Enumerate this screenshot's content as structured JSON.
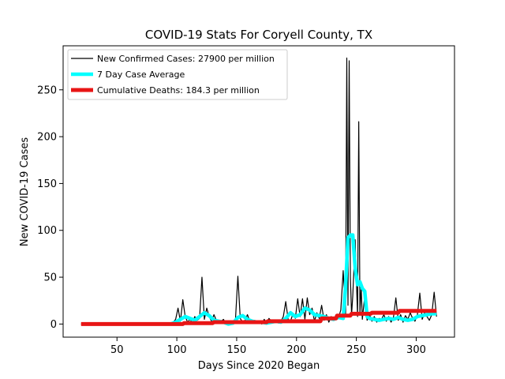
{
  "chart_data": {
    "type": "line",
    "title": "COVID-19 Stats For Coryell County, TX",
    "xlabel": "Days Since 2020 Began",
    "ylabel": "New COVID-19 Cases",
    "xlim": [
      5,
      332
    ],
    "ylim": [
      -14,
      297
    ],
    "xticks": [
      50,
      100,
      150,
      200,
      250,
      300
    ],
    "yticks": [
      0,
      50,
      100,
      150,
      200,
      250
    ],
    "grid": false,
    "legend_position": "upper-left",
    "series": [
      {
        "name": "New Confirmed Cases: 27900 per million",
        "color": "#000000",
        "x": [
          20,
          95,
          97,
          99,
          101,
          103,
          105,
          107,
          109,
          111,
          113,
          115,
          117,
          119,
          121,
          123,
          125,
          127,
          129,
          131,
          133,
          135,
          137,
          139,
          141,
          143,
          145,
          147,
          149,
          151,
          153,
          155,
          157,
          159,
          161,
          163,
          165,
          167,
          169,
          171,
          173,
          175,
          177,
          179,
          181,
          183,
          185,
          187,
          189,
          191,
          193,
          195,
          197,
          199,
          201,
          203,
          205,
          207,
          209,
          211,
          213,
          215,
          217,
          219,
          221,
          223,
          225,
          227,
          229,
          231,
          233,
          235,
          237,
          239,
          241,
          242,
          243,
          244,
          245,
          246,
          247,
          249,
          251,
          252,
          253,
          254,
          255,
          257,
          259,
          261,
          263,
          265,
          267,
          269,
          271,
          273,
          275,
          277,
          279,
          281,
          283,
          285,
          287,
          289,
          291,
          293,
          295,
          297,
          299,
          301,
          303,
          305,
          307,
          309,
          311,
          313,
          315,
          317
        ],
        "values": [
          0,
          0,
          2,
          5,
          17,
          3,
          26,
          8,
          2,
          5,
          1,
          8,
          4,
          6,
          50,
          5,
          17,
          8,
          3,
          10,
          4,
          1,
          3,
          5,
          0,
          2,
          1,
          3,
          5,
          51,
          6,
          2,
          4,
          10,
          3,
          1,
          4,
          2,
          3,
          0,
          5,
          2,
          6,
          3,
          2,
          4,
          1,
          3,
          8,
          24,
          5,
          3,
          11,
          6,
          27,
          8,
          27,
          5,
          28,
          10,
          17,
          3,
          12,
          6,
          20,
          4,
          10,
          2,
          8,
          4,
          10,
          6,
          15,
          57,
          10,
          284,
          20,
          281,
          50,
          10,
          30,
          90,
          8,
          216,
          12,
          40,
          5,
          30,
          4,
          10,
          3,
          8,
          2,
          6,
          5,
          10,
          3,
          8,
          2,
          7,
          28,
          4,
          10,
          2,
          9,
          5,
          12,
          6,
          3,
          10,
          33,
          5,
          12,
          8,
          4,
          10,
          34,
          8
        ]
      },
      {
        "name": "7 Day Case Average",
        "color": "#00ffff",
        "x": [
          95,
          99,
          103,
          107,
          111,
          115,
          119,
          123,
          127,
          131,
          135,
          139,
          143,
          147,
          151,
          155,
          159,
          163,
          167,
          171,
          175,
          179,
          183,
          187,
          191,
          195,
          199,
          203,
          207,
          211,
          215,
          219,
          223,
          227,
          231,
          235,
          239,
          241,
          243,
          245,
          247,
          249,
          251,
          253,
          255,
          257,
          259,
          261,
          265,
          269,
          273,
          277,
          281,
          285,
          289,
          293,
          297,
          301,
          305,
          309,
          313,
          317
        ],
        "values": [
          0,
          2,
          5,
          8,
          6,
          4,
          8,
          12,
          9,
          4,
          3,
          2,
          0,
          1,
          7,
          9,
          5,
          3,
          2,
          2,
          1,
          2,
          3,
          2,
          6,
          12,
          8,
          10,
          17,
          15,
          10,
          9,
          8,
          6,
          5,
          7,
          6,
          40,
          92,
          95,
          95,
          60,
          42,
          45,
          38,
          35,
          8,
          6,
          5,
          4,
          5,
          6,
          5,
          7,
          5,
          4,
          5,
          8,
          9,
          10,
          11,
          11
        ]
      },
      {
        "name": "Cumulative Deaths: 184.3 per million",
        "color": "#e81515",
        "x": [
          20,
          105,
          106,
          130,
          131,
          175,
          176,
          220,
          221,
          233,
          234,
          245,
          246,
          262,
          263,
          285,
          286,
          317
        ],
        "values": [
          0,
          0,
          1,
          1,
          2,
          2,
          3,
          3,
          6,
          6,
          9,
          9,
          11,
          11,
          12,
          12,
          14,
          14
        ]
      }
    ]
  }
}
